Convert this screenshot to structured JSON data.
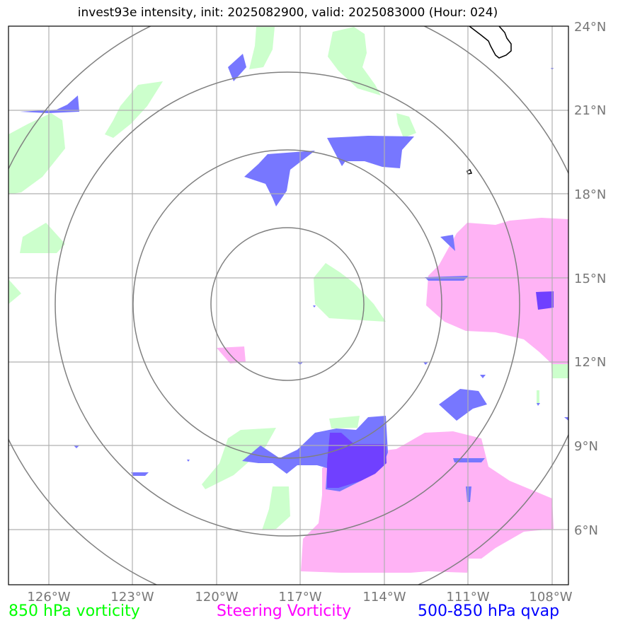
{
  "title": "invest93e intensity, init: 2025082900, valid: 2025083000 (Hour: 024)",
  "map": {
    "lon_labels": [
      "126°W",
      "123°W",
      "120°W",
      "117°W",
      "114°W",
      "111°W",
      "108°W"
    ],
    "lat_labels": [
      "24°N",
      "21°N",
      "18°N",
      "15°N",
      "12°N",
      "9°N",
      "6°N"
    ],
    "center": "117.5°W, 14°N"
  },
  "legend": {
    "vort850": {
      "label": "850 hPa vorticity",
      "color": "#00ff00"
    },
    "steering": {
      "label": "Steering Vorticity",
      "color": "#ff00ff"
    },
    "qvap": {
      "label": "500-850 hPa qvap",
      "color": "#0000ff"
    }
  },
  "colors": {
    "vort850_fill": "#ccffcc",
    "steering_fill": "#ffb3f5",
    "qvap_fill": "#7777ff",
    "qvap_strong": "#7040ff",
    "grid": "#b0b0b0",
    "rings": "#808080",
    "coast": "#000000"
  }
}
